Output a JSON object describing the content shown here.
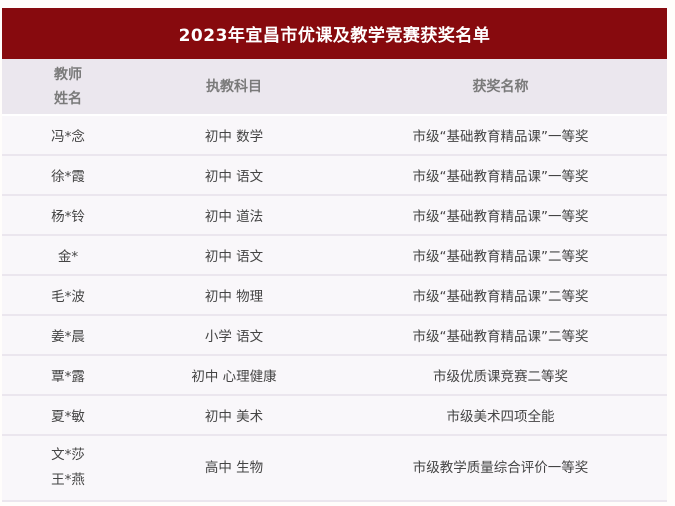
{
  "title": "2023年宜昌市优课及教学竞赛获奖名单",
  "headers": {
    "name_line1": "教师",
    "name_line2": "姓名",
    "subject": "执教科目",
    "award": "获奖名称"
  },
  "rows": [
    {
      "name": "冯*念",
      "subject": "初中 数学",
      "award": "市级“基础教育精品课”一等奖"
    },
    {
      "name": "徐*霞",
      "subject": "初中 语文",
      "award": "市级“基础教育精品课”一等奖"
    },
    {
      "name": "杨*铃",
      "subject": "初中 道法",
      "award": "市级“基础教育精品课”一等奖"
    },
    {
      "name": "金*",
      "subject": "初中 语文",
      "award": "市级“基础教育精品课”二等奖"
    },
    {
      "name": "毛*波",
      "subject": "初中 物理",
      "award": "市级“基础教育精品课”二等奖"
    },
    {
      "name": "姜*晨",
      "subject": "小学 语文",
      "award": "市级“基础教育精品课”二等奖"
    },
    {
      "name": "覃*露",
      "subject": "初中 心理健康",
      "award": "市级优质课竞赛二等奖"
    },
    {
      "name": "夏*敏",
      "subject": "初中 美术",
      "award": "市级美术四项全能"
    }
  ],
  "last_row": {
    "name1": "文*莎",
    "name2": "王*燕",
    "subject": "高中 生物",
    "award": "市级教学质量综合评价一等奖"
  }
}
